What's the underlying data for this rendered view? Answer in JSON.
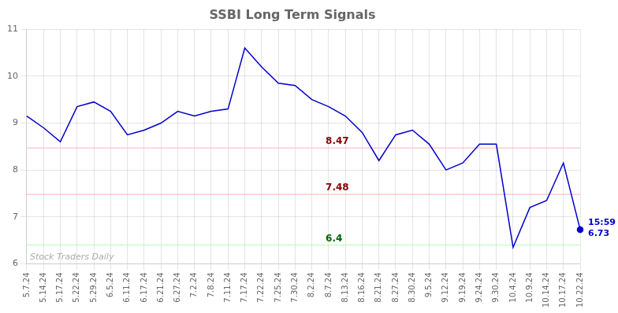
{
  "chart_data": {
    "type": "line",
    "title": "SSBI Long Term Signals",
    "categories": [
      "5.7.24",
      "5.14.24",
      "5.17.24",
      "5.22.24",
      "5.29.24",
      "6.5.24",
      "6.11.24",
      "6.17.24",
      "6.21.24",
      "6.27.24",
      "7.2.24",
      "7.8.24",
      "7.11.24",
      "7.17.24",
      "7.22.24",
      "7.25.24",
      "7.30.24",
      "8.2.24",
      "8.7.24",
      "8.13.24",
      "8.16.24",
      "8.21.24",
      "8.27.24",
      "8.30.24",
      "9.5.24",
      "9.12.24",
      "9.19.24",
      "9.24.24",
      "9.30.24",
      "10.4.24",
      "10.9.24",
      "10.14.24",
      "10.17.24",
      "10.22.24"
    ],
    "values": [
      9.15,
      8.9,
      8.6,
      9.35,
      9.45,
      9.25,
      8.75,
      8.85,
      9.0,
      9.25,
      9.15,
      9.25,
      9.3,
      10.6,
      10.2,
      9.85,
      9.8,
      9.5,
      9.35,
      9.15,
      8.8,
      8.2,
      8.75,
      8.85,
      8.55,
      8.0,
      8.15,
      8.55,
      8.55,
      6.35,
      7.2,
      7.35,
      8.15,
      6.73
    ],
    "color": "#0000cc",
    "ylim": [
      6,
      11
    ],
    "yticks": [
      6,
      7,
      8,
      9,
      10,
      11
    ],
    "grid": true,
    "hlines": [
      {
        "value": 8.47,
        "label": "8.47",
        "color": "#ffb3b3",
        "label_color": "#8b0000"
      },
      {
        "value": 7.48,
        "label": "7.48",
        "color": "#ffb3b3",
        "label_color": "#8b0000"
      },
      {
        "value": 6.4,
        "label": "6.4",
        "color": "#b3ffb3",
        "label_color": "#006400"
      }
    ],
    "annotations": [
      {
        "text": "15:59",
        "color": "#0000cc"
      },
      {
        "text": "6.73",
        "color": "#0000cc"
      }
    ],
    "watermark": {
      "text": "Stock Traders Daily",
      "color": "#aaaaaa"
    }
  }
}
